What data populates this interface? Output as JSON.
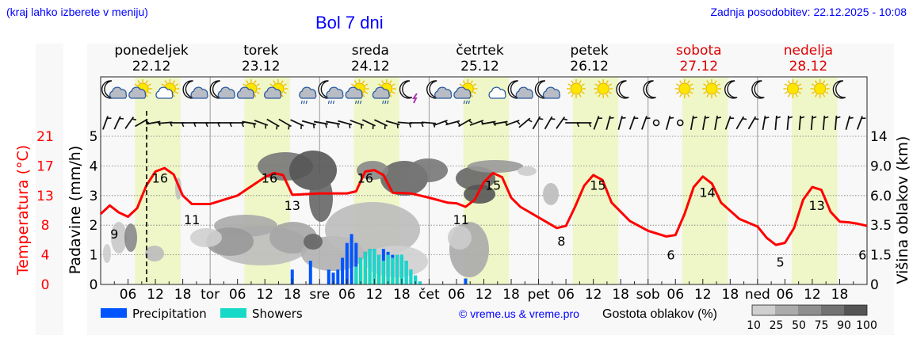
{
  "header": {
    "location_hint": "(kraj lahko izberete v meniju)",
    "title": "Bol 7 dni",
    "last_update": "Zadnja posodobitev: 22.12.2025 - 10:08"
  },
  "days": [
    {
      "name": "ponedeljek",
      "date": "22.12",
      "weekend": false
    },
    {
      "name": "torek",
      "date": "23.12",
      "weekend": false
    },
    {
      "name": "sreda",
      "date": "24.12",
      "weekend": false
    },
    {
      "name": "četrtek",
      "date": "25.12",
      "weekend": false
    },
    {
      "name": "petek",
      "date": "26.12",
      "weekend": false
    },
    {
      "name": "sobota",
      "date": "27.12",
      "weekend": true
    },
    {
      "name": "nedelja",
      "date": "28.12",
      "weekend": true
    }
  ],
  "weather_icons": [
    "moon-cloud",
    "sun-cloud",
    "sun-small-cloud",
    "moon-cloud",
    "moon-cloud",
    "sun-cloud",
    "sun-cloud",
    "cloud-rain",
    "moon-cloud-rain",
    "sun-cloud-rain",
    "sun-cloud-rain",
    "moon-lightning",
    "moon-cloud",
    "sun-cloud-rain",
    "cloud",
    "moon-cloud",
    "moon-cloud",
    "sun",
    "sun",
    "moon",
    "moon",
    "sun",
    "sun",
    "moon",
    "moon",
    "sun",
    "sun",
    "moon"
  ],
  "axes": {
    "left_temp_label": "Temperatura (°C)",
    "left_temp_ticks": [
      "0",
      "4",
      "8",
      "13",
      "17",
      "21"
    ],
    "left_precip_label": "Padavine (mm/h)",
    "left_precip_ticks": [
      "0",
      "1",
      "2",
      "3",
      "4",
      "5"
    ],
    "right_label": "Višina oblakov (km)",
    "right_ticks": [
      "0",
      "1.5",
      "3.5",
      "6.0",
      "9.0",
      "14"
    ],
    "x_ticks": [
      "06",
      "12",
      "18",
      "tor",
      "06",
      "12",
      "18",
      "sre",
      "06",
      "12",
      "18",
      "čet",
      "06",
      "12",
      "18",
      "pet",
      "06",
      "12",
      "18",
      "sob",
      "06",
      "12",
      "18",
      "ned",
      "06",
      "12",
      "18"
    ]
  },
  "legend": {
    "precipitation": "Precipitation",
    "showers": "Showers",
    "precipitation_color": "#0055ff",
    "showers_color": "#17d9c8",
    "copyright": "© vreme.us & vreme.pro",
    "cloud_density_label": "Gostota oblakov (%)",
    "cloud_density_ticks": [
      "10",
      "25",
      "50",
      "75",
      "90",
      "100"
    ],
    "cloud_density_colors": [
      "#cfcfcf",
      "#ababab",
      "#8f8f8f",
      "#727272",
      "#555555"
    ]
  },
  "colors": {
    "temperature": "#ff0000",
    "daylight": "#eff7c8",
    "title_blue": "#0000ff",
    "weekend_red": "#dd0000"
  },
  "chart_data": {
    "type": "line",
    "title": "Bol 7 dni",
    "xlabel": "",
    "ylabel": "Padavine (mm/h)",
    "ylim": [
      0,
      5
    ],
    "temperature_ylim": [
      0,
      21
    ],
    "grid": true,
    "now_marker_hour": 10,
    "temperature_labels": [
      {
        "hour": 3,
        "value": 9
      },
      {
        "hour": 13,
        "value": 16
      },
      {
        "hour": 20,
        "value": 11
      },
      {
        "hour": 37,
        "value": 16
      },
      {
        "hour": 42,
        "value": 13
      },
      {
        "hour": 58,
        "value": 16
      },
      {
        "hour": 79,
        "value": 11
      },
      {
        "hour": 86,
        "value": 15
      },
      {
        "hour": 101,
        "value": 8
      },
      {
        "hour": 109,
        "value": 15
      },
      {
        "hour": 125,
        "value": 6
      },
      {
        "hour": 133,
        "value": 14
      },
      {
        "hour": 149,
        "value": 5
      },
      {
        "hour": 157,
        "value": 13
      },
      {
        "hour": 167,
        "value": 6
      }
    ],
    "series": [
      {
        "name": "Temperatura (°C)",
        "x_hours": [
          0,
          2,
          4,
          6,
          8,
          10,
          12,
          14,
          16,
          18,
          20,
          24,
          30,
          36,
          38,
          40,
          42,
          48,
          54,
          56,
          58,
          60,
          62,
          64,
          68,
          72,
          76,
          78,
          80,
          82,
          84,
          86,
          88,
          90,
          92,
          96,
          100,
          102,
          104,
          106,
          108,
          110,
          112,
          116,
          120,
          124,
          126,
          128,
          130,
          132,
          134,
          136,
          140,
          144,
          146,
          148,
          150,
          152,
          154,
          156,
          158,
          160,
          162,
          164,
          166,
          168
        ],
        "values": [
          10.0,
          11.2,
          10.2,
          9.6,
          10.8,
          14.0,
          16.0,
          16.5,
          15.6,
          12.6,
          11.4,
          11.4,
          12.6,
          15.2,
          15.8,
          15.5,
          12.7,
          12.9,
          12.9,
          13.2,
          16.0,
          16.2,
          15.5,
          13.0,
          12.9,
          12.3,
          11.6,
          11.5,
          11.0,
          12.0,
          14.5,
          15.8,
          15.2,
          12.3,
          11.0,
          9.5,
          8.0,
          8.3,
          11.0,
          14.0,
          15.5,
          14.8,
          11.6,
          9.0,
          7.6,
          6.8,
          7.0,
          10.0,
          13.8,
          15.3,
          14.3,
          11.6,
          9.3,
          8.2,
          6.6,
          5.6,
          5.9,
          8.0,
          12.0,
          13.8,
          13.4,
          10.3,
          8.9,
          8.8,
          8.6,
          8.3
        ]
      },
      {
        "name": "Precipitation",
        "x_hours": [
          42,
          46,
          50,
          51,
          52,
          53,
          54,
          55,
          56,
          57,
          58,
          59,
          60,
          61,
          62,
          63,
          64,
          65,
          66,
          67,
          68,
          69,
          70,
          80
        ],
        "values": [
          0.5,
          0.8,
          0.5,
          0.4,
          0.5,
          0.9,
          1.4,
          1.7,
          1.4,
          0,
          0,
          0,
          0.8,
          0.8,
          1.2,
          1.1,
          1.0,
          1.0,
          0.4,
          0,
          0,
          0,
          0,
          0.2
        ]
      },
      {
        "name": "Showers",
        "x_hours": [
          56,
          57,
          58,
          59,
          60,
          61,
          62,
          63,
          64,
          65,
          66,
          67,
          68,
          69,
          70
        ],
        "values": [
          0.6,
          0.9,
          1.1,
          1.2,
          1.2,
          1.0,
          0.8,
          1.0,
          0.9,
          1.0,
          1.0,
          0.8,
          0.5,
          0.3,
          0.1
        ]
      }
    ],
    "legend": [
      "Precipitation",
      "Showers"
    ],
    "legend_position": "bottom"
  }
}
